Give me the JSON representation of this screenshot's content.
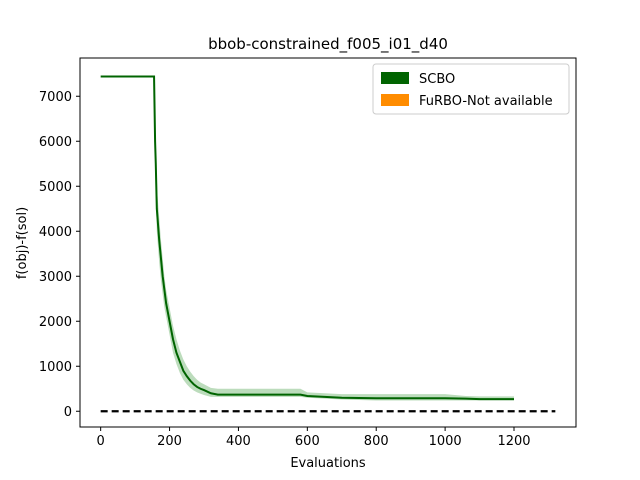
{
  "chart_data": {
    "type": "line",
    "title": "bbob-constrained_f005_i01_d40",
    "xlabel": "Evaluations",
    "ylabel": "f(obj)-f(sol)",
    "xlim": [
      -60,
      1380
    ],
    "ylim": [
      -350,
      7850
    ],
    "xticks": [
      0,
      200,
      400,
      600,
      800,
      1000,
      1200
    ],
    "yticks": [
      0,
      1000,
      2000,
      3000,
      4000,
      5000,
      6000,
      7000
    ],
    "legend_position": "top-right",
    "legend": [
      {
        "label": "SCBO",
        "color": "#006400"
      },
      {
        "label": "FuRBO-Not available",
        "color": "#ff8c00"
      }
    ],
    "series": [
      {
        "name": "SCBO",
        "color": "#006400",
        "band_color": "#8fc48f",
        "x": [
          0,
          155,
          158,
          160,
          163,
          165,
          170,
          175,
          180,
          185,
          190,
          195,
          200,
          205,
          210,
          220,
          230,
          240,
          250,
          260,
          270,
          280,
          290,
          300,
          320,
          340,
          360,
          400,
          500,
          580,
          600,
          650,
          700,
          800,
          900,
          1000,
          1060,
          1100,
          1200
        ],
        "y": [
          7440,
          7440,
          6000,
          5500,
          4500,
          4300,
          3800,
          3400,
          3000,
          2700,
          2400,
          2200,
          2000,
          1800,
          1600,
          1300,
          1100,
          900,
          780,
          680,
          600,
          540,
          500,
          470,
          400,
          370,
          370,
          370,
          370,
          370,
          340,
          320,
          300,
          290,
          290,
          290,
          280,
          270,
          270
        ],
        "upper": [
          7440,
          7440,
          6700,
          6000,
          5200,
          4800,
          4300,
          3800,
          3400,
          3000,
          2700,
          2500,
          2300,
          2100,
          1900,
          1600,
          1350,
          1150,
          1000,
          880,
          780,
          700,
          640,
          600,
          520,
          500,
          500,
          500,
          500,
          500,
          420,
          400,
          380,
          380,
          380,
          380,
          340,
          330,
          330
        ],
        "lower": [
          7440,
          7440,
          5300,
          4800,
          4000,
          3800,
          3300,
          2900,
          2600,
          2300,
          2100,
          1900,
          1700,
          1500,
          1300,
          1050,
          850,
          700,
          600,
          520,
          460,
          420,
          390,
          360,
          320,
          320,
          320,
          320,
          320,
          320,
          300,
          280,
          260,
          240,
          240,
          240,
          240,
          240,
          240
        ]
      }
    ],
    "reference_line": {
      "y": 0,
      "x_range": [
        0,
        1320
      ],
      "color": "#000000",
      "style": "dashed"
    }
  }
}
